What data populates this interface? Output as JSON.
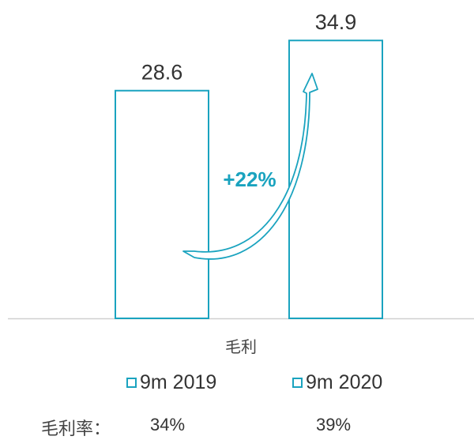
{
  "chart_data": {
    "type": "bar",
    "categories": [
      "毛利"
    ],
    "series": [
      {
        "name": "9m 2019",
        "values": [
          28.6
        ]
      },
      {
        "name": "9m 2020",
        "values": [
          34.9
        ]
      }
    ],
    "data_labels": [
      "28.6",
      "34.9"
    ],
    "growth_label": "+22%",
    "ylim": [
      0,
      38
    ],
    "legend_position": "bottom",
    "grid": false
  },
  "legend": [
    {
      "label": "9m 2019"
    },
    {
      "label": "9m 2020"
    }
  ],
  "margin_row": {
    "label": "毛利率：",
    "values": [
      "34%",
      "39%"
    ]
  },
  "colors": {
    "accent": "#1aa3bf",
    "bar_fill": "#ffffff",
    "axis": "#d0d0d0"
  }
}
